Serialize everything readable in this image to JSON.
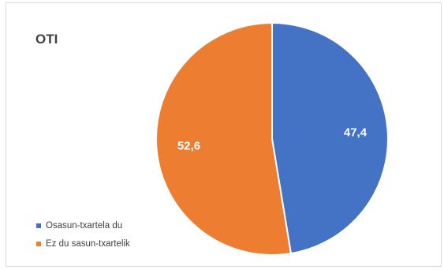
{
  "chart_data": {
    "type": "pie",
    "title": "OTI",
    "categories": [
      "Osasun-txartela du",
      "Ez du sasun-txartelik"
    ],
    "values": [
      47.4,
      52.6
    ],
    "data_labels": [
      "47,4",
      "52,6"
    ],
    "colors": [
      "#4472c4",
      "#ed7d31"
    ],
    "legend_position": "bottom-left"
  }
}
